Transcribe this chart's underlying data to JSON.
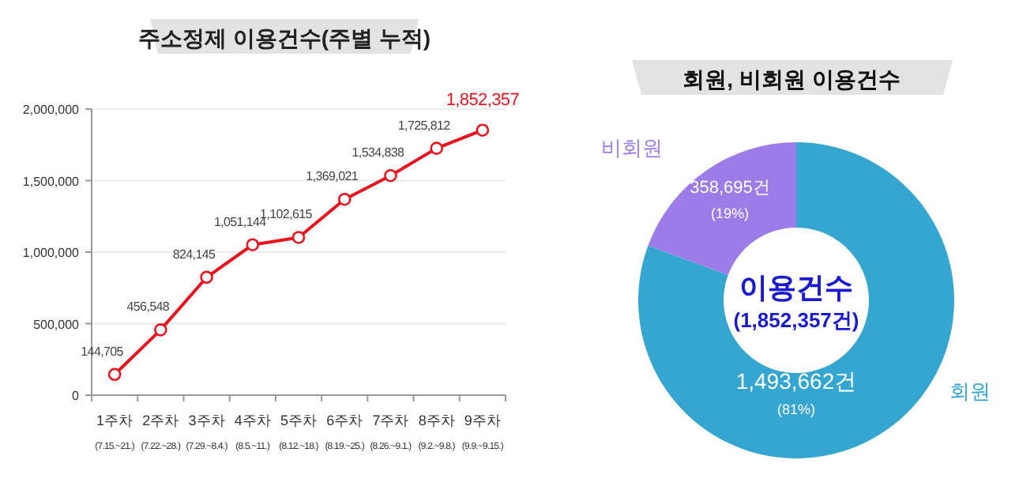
{
  "chart_data": [
    {
      "type": "line",
      "title": "주소정제 이용건수(주별 누적)",
      "categories": [
        "1주차\n(7.15.~21.)",
        "2주차\n(7.22.~28.)",
        "3주차\n(7.29.~8.4.)",
        "4주차\n(8.5.~11.)",
        "5주차\n(8.12.~18.)",
        "6주차\n(8.19.~25.)",
        "7주차\n(8.26.~9.1.)",
        "8주차\n(9.2.~9.8.)",
        "9주차\n(9.9.~9.15.)"
      ],
      "series": [
        {
          "color": "#e8131f",
          "values": [
            144705,
            456548,
            824145,
            1051144,
            1102615,
            1369021,
            1534838,
            1725812,
            1852357
          ]
        }
      ],
      "value_labels": [
        "144,705",
        "456,548",
        "824,145",
        "1,051,144",
        "1,102,615",
        "1,369,021",
        "1,534,838",
        "1,725,812",
        "1,852,357"
      ],
      "ylim": [
        0,
        2000000
      ],
      "yticks": [
        0,
        {
          "value": 500000,
          "label": "500,000"
        },
        {
          "value": 1000000,
          "label": "1,000,000"
        },
        {
          "value": 1500000,
          "label": "1,500,000"
        },
        {
          "value": 2000000,
          "label": "2,000,000"
        }
      ],
      "grid": "y",
      "marker": "circle"
    },
    {
      "type": "donut",
      "title": "회원, 비회원 이용건수",
      "categories": [
        "회원",
        "비회원"
      ],
      "values": [
        1493662,
        358695
      ],
      "colors": [
        "#35a6cf",
        "#9c7de8"
      ],
      "value_labels": [
        "1,493,662건\n(81%)",
        "358,695건\n(19%)"
      ],
      "annotations": [
        "이용건수",
        "(1,852,357건)"
      ]
    }
  ]
}
